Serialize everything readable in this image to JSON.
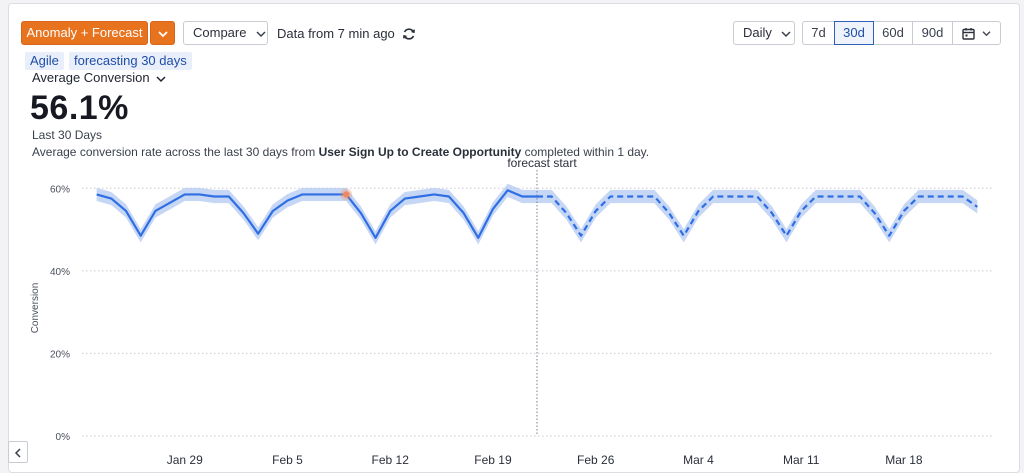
{
  "toolbar": {
    "mode_label": "Anomaly + Forecast",
    "compare_label": "Compare",
    "data_freshness": "Data from 7 min ago",
    "granularity_label": "Daily",
    "ranges": [
      "7d",
      "30d",
      "60d",
      "90d"
    ],
    "active_range": "30d"
  },
  "tags": [
    "Agile",
    "forecasting 30 days"
  ],
  "metric": {
    "selector_label": "Average Conversion",
    "value": "56.1%",
    "period": "Last 30 Days",
    "desc_prefix": "Average conversion rate across the last 30 days from ",
    "desc_bold": "User Sign Up to Create Opportunity",
    "desc_suffix": " completed within 1 day."
  },
  "colors": {
    "accent": "#e8731f",
    "series": "#2f6fe4",
    "band": "#b3c8f2",
    "anomaly": "#f08a5d"
  },
  "chart_data": {
    "type": "line",
    "ylabel": "Conversion",
    "ylim": [
      0,
      62
    ],
    "y_ticks": [
      "0%",
      "20%",
      "40%",
      "60%"
    ],
    "y_tick_values": [
      0,
      20,
      40,
      60
    ],
    "x_ticks": [
      "Jan 29",
      "Feb 5",
      "Feb 12",
      "Feb 19",
      "Feb 26",
      "Mar 4",
      "Mar 11",
      "Mar 18"
    ],
    "forecast_label": "forecast start",
    "series": [
      {
        "kind": "actual",
        "x": [
          "Jan 23",
          "Jan 24",
          "Jan 25",
          "Jan 26",
          "Jan 27",
          "Jan 28",
          "Jan 29",
          "Jan 30",
          "Jan 31",
          "Feb 1",
          "Feb 2",
          "Feb 3",
          "Feb 4",
          "Feb 5",
          "Feb 6",
          "Feb 7",
          "Feb 8",
          "Feb 9",
          "Feb 10",
          "Feb 11",
          "Feb 12",
          "Feb 13",
          "Feb 14",
          "Feb 15",
          "Feb 16",
          "Feb 17",
          "Feb 18",
          "Feb 19",
          "Feb 20",
          "Feb 21",
          "Feb 22"
        ],
        "values": [
          58.5,
          57.5,
          54.5,
          48.5,
          54.5,
          56.5,
          58.5,
          58.5,
          58.0,
          58.0,
          54.0,
          49.0,
          54.5,
          57.0,
          58.5,
          58.5,
          58.5,
          58.5,
          54.0,
          48.0,
          54.5,
          57.5,
          58.0,
          58.5,
          58.0,
          54.0,
          48.0,
          55.0,
          59.5,
          58.0,
          58.0
        ]
      },
      {
        "kind": "forecast",
        "x": [
          "Feb 22",
          "Feb 23",
          "Feb 24",
          "Feb 25",
          "Feb 26",
          "Feb 27",
          "Feb 28",
          "Feb 29",
          "Mar 1",
          "Mar 2",
          "Mar 3",
          "Mar 4",
          "Mar 5",
          "Mar 6",
          "Mar 7",
          "Mar 8",
          "Mar 9",
          "Mar 10",
          "Mar 11",
          "Mar 12",
          "Mar 13",
          "Mar 14",
          "Mar 15",
          "Mar 16",
          "Mar 17",
          "Mar 18",
          "Mar 19",
          "Mar 20",
          "Mar 21",
          "Mar 22",
          "Mar 23"
        ],
        "values": [
          58.0,
          58.0,
          54.0,
          48.5,
          54.5,
          58.0,
          58.0,
          58.0,
          58.0,
          54.0,
          48.5,
          54.5,
          58.0,
          58.0,
          58.0,
          58.0,
          54.0,
          48.5,
          54.5,
          58.0,
          58.0,
          58.0,
          58.0,
          54.0,
          48.5,
          54.5,
          58.0,
          58.0,
          58.0,
          58.0,
          55.5
        ]
      }
    ],
    "band": {
      "x_range": [
        "Jan 23",
        "Mar 23"
      ],
      "half_width": 1.6
    },
    "anomalies": [
      {
        "x": "Feb 9",
        "value": 58.5
      }
    ]
  }
}
